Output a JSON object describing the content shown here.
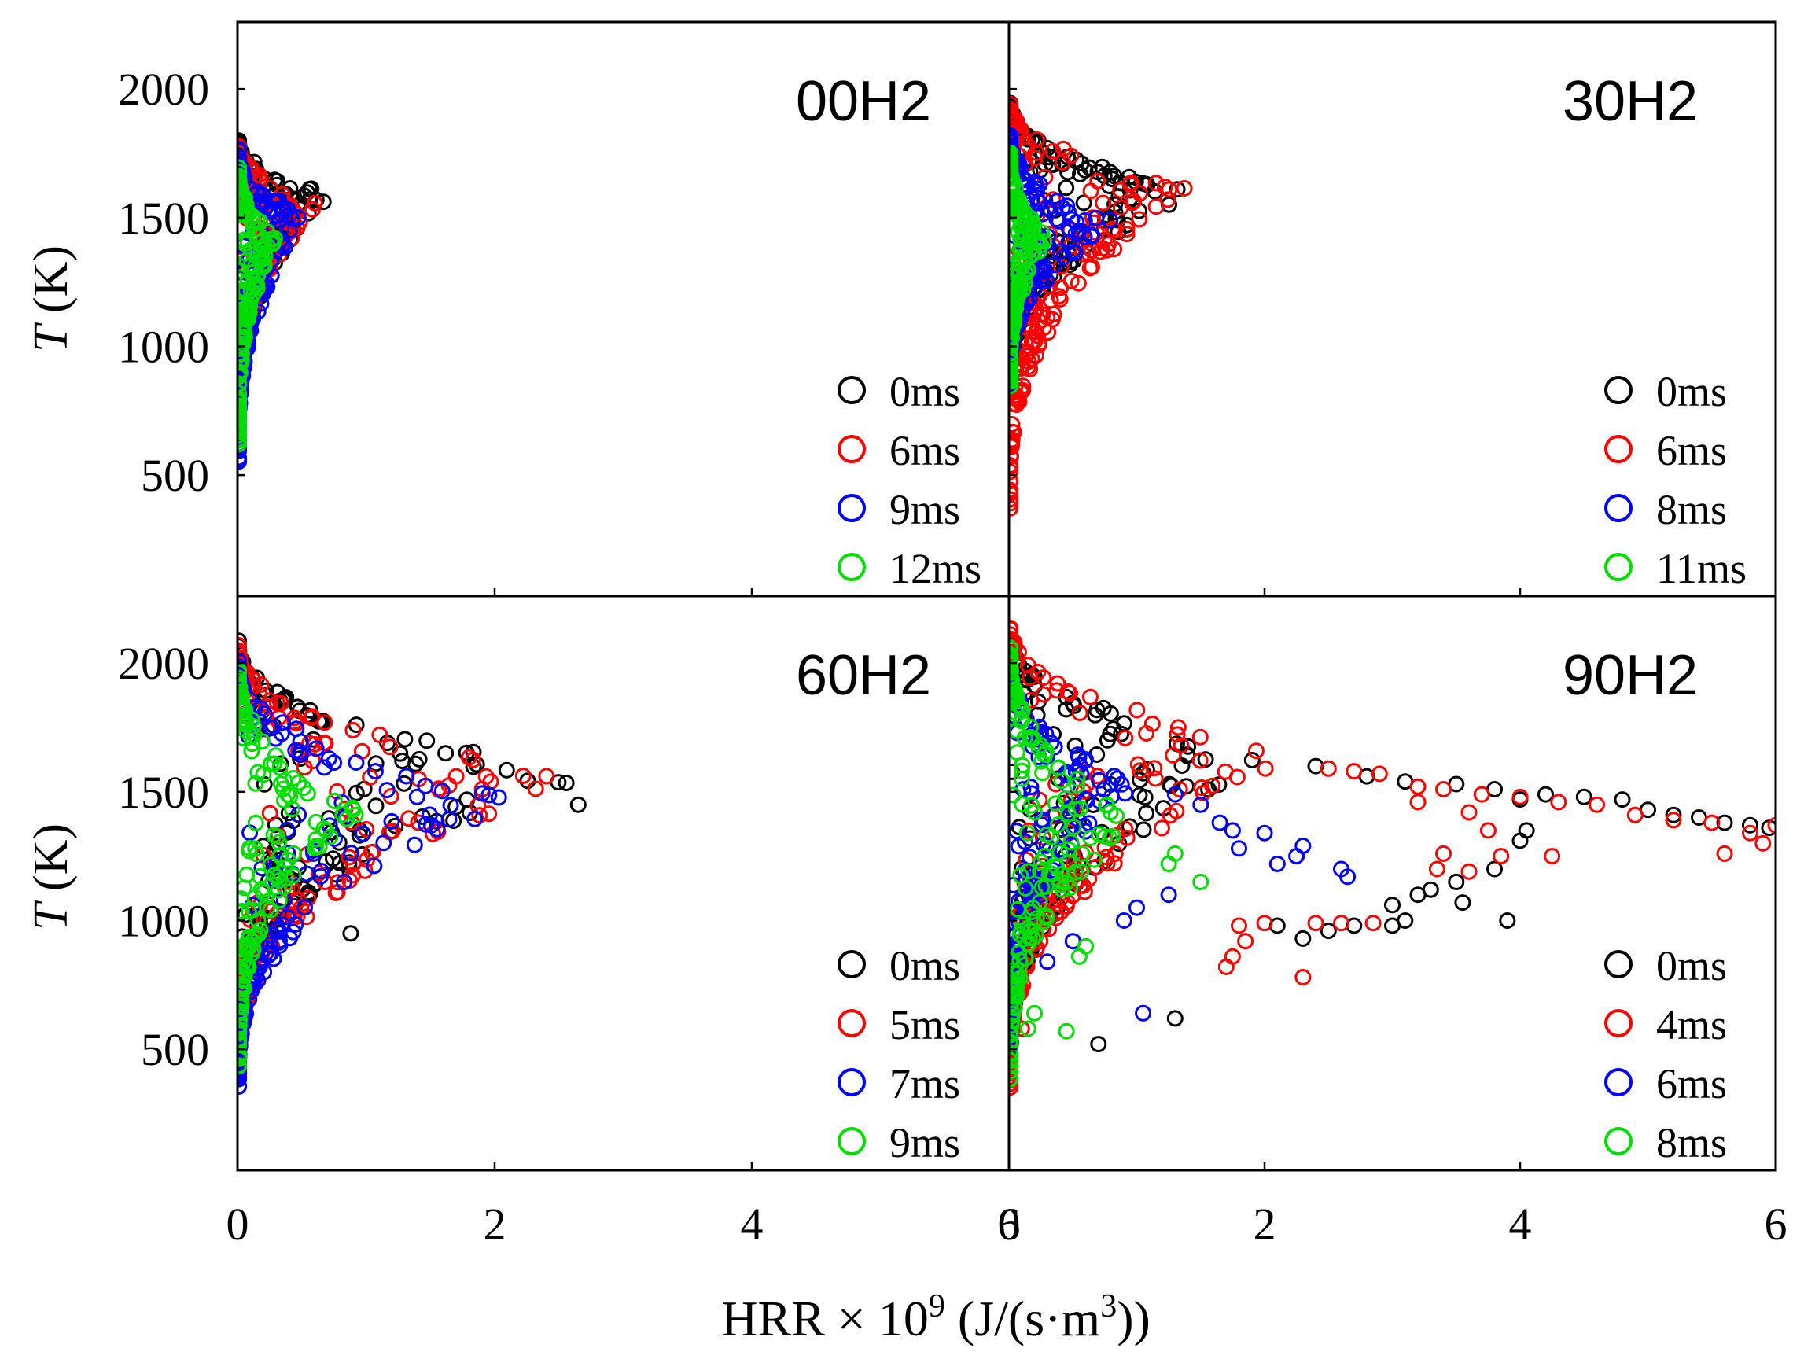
{
  "figure": {
    "x_label_prefix": "HRR × 10",
    "x_label_exp": "9",
    "x_label_units": " (J/(s·m",
    "x_label_units_exp": "3",
    "x_label_units_close": "))",
    "y_label_var": "T",
    "y_label_unit": " (K)"
  },
  "chart_data": [
    {
      "type": "scatter",
      "panel": "00H2",
      "xlim": [
        0,
        6
      ],
      "ylim": [
        30,
        2260
      ],
      "xticks": [
        0,
        2,
        4,
        6
      ],
      "yticks": [
        500,
        1000,
        1500,
        2000
      ],
      "show_y_ticklabels": true,
      "show_x_ticklabels": false,
      "legend_position": "bottom-right",
      "series": [
        {
          "name": "0ms",
          "color": "#000000",
          "shape": "nose",
          "peak_x": 0.72,
          "peak_y": 1590,
          "top_y": 1800,
          "base_y": 650,
          "points": []
        },
        {
          "name": "6ms",
          "color": "#ff0000",
          "shape": "nose",
          "peak_x": 0.66,
          "peak_y": 1560,
          "top_y": 1780,
          "base_y": 650,
          "points": []
        },
        {
          "name": "9ms",
          "color": "#0000ff",
          "shape": "nose",
          "peak_x": 0.55,
          "peak_y": 1500,
          "top_y": 1760,
          "base_y": 560,
          "points": []
        },
        {
          "name": "12ms",
          "color": "#00dd00",
          "shape": "nose",
          "peak_x": 0.3,
          "peak_y": 1420,
          "top_y": 1700,
          "base_y": 620,
          "points": []
        }
      ]
    },
    {
      "type": "scatter",
      "panel": "30H2",
      "xlim": [
        0,
        6
      ],
      "ylim": [
        30,
        2260
      ],
      "xticks": [
        0,
        2,
        4,
        6
      ],
      "yticks": [
        500,
        1000,
        1500,
        2000
      ],
      "show_y_ticklabels": false,
      "show_x_ticklabels": false,
      "legend_position": "bottom-right",
      "series": [
        {
          "name": "0ms",
          "color": "#000000",
          "shape": "nose",
          "peak_x": 1.5,
          "peak_y": 1590,
          "top_y": 1950,
          "base_y": 830,
          "points": []
        },
        {
          "name": "6ms",
          "color": "#ff0000",
          "shape": "nose",
          "peak_x": 1.42,
          "peak_y": 1620,
          "top_y": 1950,
          "base_y": 380,
          "points": []
        },
        {
          "name": "8ms",
          "color": "#0000ff",
          "shape": "nose",
          "peak_x": 0.85,
          "peak_y": 1480,
          "top_y": 1820,
          "base_y": 850,
          "points": []
        },
        {
          "name": "11ms",
          "color": "#00dd00",
          "shape": "nose",
          "peak_x": 0.3,
          "peak_y": 1420,
          "top_y": 1750,
          "base_y": 850,
          "points": []
        }
      ]
    },
    {
      "type": "scatter",
      "panel": "60H2",
      "xlim": [
        0,
        6
      ],
      "ylim": [
        30,
        2260
      ],
      "xticks": [
        0,
        2,
        4,
        6
      ],
      "yticks": [
        500,
        1000,
        1500,
        2000
      ],
      "show_y_ticklabels": true,
      "show_x_ticklabels": true,
      "legend_position": "bottom-right",
      "series": [
        {
          "name": "0ms",
          "color": "#000000",
          "shape": "nose",
          "peak_x": 2.85,
          "peak_y": 1570,
          "top_y": 2080,
          "base_y": 550,
          "points": [
            [
              0.88,
              950
            ],
            [
              2.65,
              1450
            ]
          ]
        },
        {
          "name": "5ms",
          "color": "#ff0000",
          "shape": "nose",
          "peak_x": 2.78,
          "peak_y": 1560,
          "top_y": 2060,
          "base_y": 400,
          "points": []
        },
        {
          "name": "7ms",
          "color": "#0000ff",
          "shape": "nose",
          "peak_x": 2.15,
          "peak_y": 1470,
          "top_y": 2000,
          "base_y": 350,
          "points": []
        },
        {
          "name": "9ms",
          "color": "#00dd00",
          "shape": "nose",
          "peak_x": 0.95,
          "peak_y": 1420,
          "top_y": 1980,
          "base_y": 430,
          "points": [
            [
              0.9,
              1430
            ]
          ]
        }
      ]
    },
    {
      "type": "scatter",
      "panel": "90H2",
      "xlim": [
        0,
        6
      ],
      "ylim": [
        30,
        2260
      ],
      "xticks": [
        0,
        2,
        4,
        6
      ],
      "yticks": [
        500,
        1000,
        1500,
        2000
      ],
      "show_y_ticklabels": false,
      "show_x_ticklabels": true,
      "legend_position": "bottom-right",
      "series": [
        {
          "name": "0ms",
          "color": "#000000",
          "shape": "nose",
          "peak_x": 2.2,
          "peak_y": 1640,
          "top_y": 2100,
          "base_y": 400,
          "points": [
            [
              2.4,
              1600
            ],
            [
              2.8,
              1560
            ],
            [
              3.1,
              1540
            ],
            [
              3.5,
              1530
            ],
            [
              3.8,
              1510
            ],
            [
              4.0,
              1470
            ],
            [
              4.2,
              1490
            ],
            [
              4.5,
              1480
            ],
            [
              4.8,
              1470
            ],
            [
              5.0,
              1430
            ],
            [
              5.2,
              1410
            ],
            [
              5.4,
              1400
            ],
            [
              5.6,
              1380
            ],
            [
              5.8,
              1370
            ],
            [
              5.95,
              1360
            ],
            [
              2.1,
              980
            ],
            [
              2.3,
              930
            ],
            [
              2.5,
              960
            ],
            [
              2.7,
              980
            ],
            [
              3.0,
              980
            ],
            [
              3.2,
              1100
            ],
            [
              3.3,
              1120
            ],
            [
              3.5,
              1150
            ],
            [
              3.8,
              1200
            ],
            [
              4.0,
              1310
            ],
            [
              4.05,
              1350
            ],
            [
              3.55,
              1070
            ],
            [
              3.9,
              1000
            ],
            [
              1.3,
              620
            ],
            [
              0.7,
              520
            ],
            [
              3.1,
              1000
            ],
            [
              3.0,
              1060
            ]
          ]
        },
        {
          "name": "4ms",
          "color": "#ff0000",
          "shape": "nose",
          "peak_x": 2.3,
          "peak_y": 1650,
          "top_y": 2150,
          "base_y": 350,
          "points": [
            [
              2.5,
              1590
            ],
            [
              2.7,
              1580
            ],
            [
              2.9,
              1570
            ],
            [
              3.2,
              1520
            ],
            [
              3.4,
              1510
            ],
            [
              3.7,
              1490
            ],
            [
              4.0,
              1480
            ],
            [
              4.3,
              1460
            ],
            [
              4.6,
              1450
            ],
            [
              4.9,
              1410
            ],
            [
              5.2,
              1390
            ],
            [
              5.5,
              1380
            ],
            [
              5.8,
              1340
            ],
            [
              6.0,
              1370
            ],
            [
              5.6,
              1260
            ],
            [
              5.9,
              1300
            ],
            [
              3.2,
              1460
            ],
            [
              3.6,
              1420
            ],
            [
              3.75,
              1350
            ],
            [
              4.25,
              1250
            ],
            [
              3.4,
              1260
            ],
            [
              3.6,
              1190
            ],
            [
              1.8,
              980
            ],
            [
              2.0,
              990
            ],
            [
              2.4,
              990
            ],
            [
              2.6,
              990
            ],
            [
              2.85,
              990
            ],
            [
              1.85,
              920
            ],
            [
              1.75,
              860
            ],
            [
              1.7,
              820
            ],
            [
              2.3,
              780
            ],
            [
              0.1,
              580
            ],
            [
              3.85,
              1250
            ],
            [
              3.35,
              1200
            ]
          ]
        },
        {
          "name": "6ms",
          "color": "#0000ff",
          "shape": "nose",
          "peak_x": 1.0,
          "peak_y": 1530,
          "top_y": 2000,
          "base_y": 500,
          "points": [
            [
              1.3,
              1490
            ],
            [
              1.5,
              1450
            ],
            [
              1.65,
              1380
            ],
            [
              1.75,
              1350
            ],
            [
              2.0,
              1340
            ],
            [
              2.3,
              1290
            ],
            [
              2.25,
              1250
            ],
            [
              2.1,
              1220
            ],
            [
              1.8,
              1280
            ],
            [
              2.6,
              1200
            ],
            [
              2.65,
              1170
            ],
            [
              1.25,
              1100
            ],
            [
              1.0,
              1050
            ],
            [
              0.5,
              920
            ],
            [
              0.3,
              840
            ],
            [
              1.05,
              640
            ],
            [
              0.9,
              1000
            ]
          ]
        },
        {
          "name": "8ms",
          "color": "#00dd00",
          "shape": "nose",
          "peak_x": 1.0,
          "peak_y": 1380,
          "top_y": 2050,
          "base_y": 380,
          "points": [
            [
              1.3,
              1260
            ],
            [
              1.5,
              1150
            ],
            [
              1.25,
              1220
            ],
            [
              0.6,
              900
            ],
            [
              0.45,
              570
            ],
            [
              0.15,
              580
            ],
            [
              0.2,
              640
            ],
            [
              0.55,
              860
            ]
          ]
        }
      ]
    }
  ]
}
